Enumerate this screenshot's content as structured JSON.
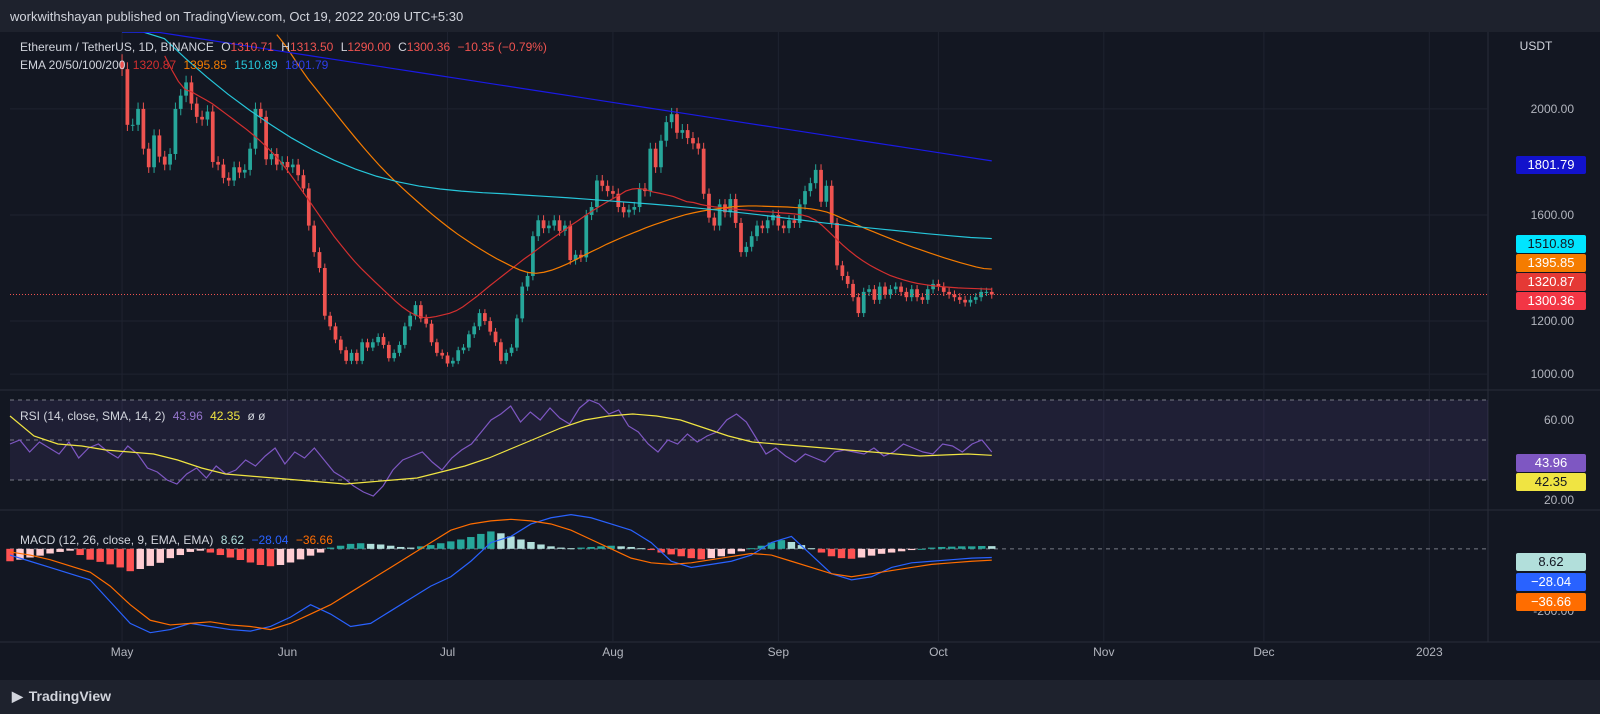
{
  "header": {
    "publisher": "workwithshayan published on TradingView.com, Oct 19, 2022 20:09 UTC+5:30"
  },
  "footer": {
    "brand": "TradingView"
  },
  "main_legend": {
    "symbol": "Ethereum / TetherUS, 1D, BINANCE",
    "o_label": "O",
    "o": "1310.71",
    "h_label": "H",
    "h": "1313.50",
    "l_label": "L",
    "l": "1290.00",
    "c_label": "C",
    "c": "1300.36",
    "change": "−10.35 (−0.79%)",
    "ema_label": "EMA 20/50/100/200",
    "ema20": "1320.87",
    "ema50": "1395.85",
    "ema100": "1510.89",
    "ema200": "1801.79"
  },
  "rsi_legend": {
    "label": "RSI (14, close, SMA, 14, 2)",
    "rsi": "43.96",
    "sma": "42.35",
    "extra": "ø ø"
  },
  "macd_legend": {
    "label": "MACD (12, 26, close, 9, EMA, EMA)",
    "hist": "8.62",
    "macd": "−28.04",
    "signal": "−36.66"
  },
  "price_labels": {
    "ema200": "1801.79",
    "ema100": "1510.89",
    "ema50": "1395.85",
    "ema20": "1320.87",
    "close": "1300.36",
    "rsi": "43.96",
    "rsi_sma": "42.35",
    "hist": "8.62",
    "macd": "−28.04",
    "signal": "−36.66"
  },
  "colors": {
    "background": "#131722",
    "up": "#26a69a",
    "down": "#ef5350",
    "ema20": "#d32f2f",
    "ema50": "#f57c00",
    "ema100": "#26c6da",
    "ema200": "#1a1ae6",
    "rsi": "#7e57c2",
    "rsi_sma": "#f0e442",
    "macd": "#2962ff",
    "signal": "#ff6d00"
  },
  "chart_data": [
    {
      "type": "candlestick",
      "title": "Ethereum / TetherUS, 1D, BINANCE",
      "unit": "USDT",
      "y_ticks": [
        "1000.00",
        "1200.00",
        "1600.00",
        "2000.00"
      ],
      "ylim": [
        940,
        2290
      ],
      "x_ticks": [
        "May",
        "Jun",
        "Jul",
        "Aug",
        "Sep",
        "Oct",
        "Nov",
        "Dec",
        "2023"
      ],
      "xlim": [
        "2022-04-10",
        "2023-01-12"
      ],
      "close": [
        2150,
        1940,
        1940,
        2000,
        1850,
        1780,
        1900,
        1820,
        1790,
        1830,
        2000,
        2050,
        2100,
        2020,
        1970,
        1960,
        1990,
        1800,
        1790,
        1740,
        1730,
        1780,
        1760,
        1770,
        1850,
        2000,
        1970,
        1810,
        1830,
        1790,
        1800,
        1780,
        1790,
        1750,
        1700,
        1560,
        1460,
        1400,
        1220,
        1180,
        1130,
        1090,
        1050,
        1080,
        1050,
        1120,
        1100,
        1120,
        1140,
        1110,
        1060,
        1080,
        1110,
        1180,
        1220,
        1260,
        1210,
        1190,
        1120,
        1080,
        1070,
        1040,
        1050,
        1090,
        1100,
        1150,
        1180,
        1230,
        1200,
        1160,
        1120,
        1050,
        1080,
        1100,
        1210,
        1330,
        1370,
        1520,
        1580,
        1550,
        1560,
        1580,
        1540,
        1560,
        1430,
        1450,
        1440,
        1600,
        1630,
        1730,
        1710,
        1690,
        1680,
        1630,
        1610,
        1620,
        1630,
        1700,
        1690,
        1850,
        1780,
        1880,
        1950,
        1980,
        1910,
        1920,
        1890,
        1870,
        1850,
        1680,
        1590,
        1560,
        1640,
        1610,
        1660,
        1570,
        1460,
        1480,
        1520,
        1560,
        1550,
        1580,
        1600,
        1560,
        1550,
        1580,
        1570,
        1640,
        1690,
        1720,
        1770,
        1650,
        1710,
        1570,
        1410,
        1370,
        1340,
        1290,
        1230,
        1310,
        1320,
        1280,
        1330,
        1300,
        1320,
        1330,
        1310,
        1290,
        1320,
        1290,
        1280,
        1320,
        1340,
        1330,
        1310,
        1300,
        1290,
        1280,
        1270,
        1280,
        1290,
        1310,
        1310,
        1300
      ],
      "ema20": [
        2200,
        2149,
        2104,
        2073,
        2064,
        2049,
        2035,
        2020,
        2001,
        1982,
        1963,
        1943,
        1924,
        1903,
        1881,
        1857,
        1832,
        1803,
        1771,
        1736,
        1700,
        1665,
        1628,
        1591,
        1555,
        1519,
        1487,
        1455,
        1425,
        1398,
        1373,
        1348,
        1324,
        1300,
        1276,
        1254,
        1236,
        1222,
        1214,
        1213,
        1217,
        1223,
        1229,
        1239,
        1254,
        1273,
        1292,
        1313,
        1334,
        1354,
        1374,
        1394,
        1414,
        1434,
        1452,
        1471,
        1490,
        1508,
        1526,
        1544,
        1562,
        1579,
        1597,
        1614,
        1630,
        1645,
        1660,
        1674,
        1690,
        1698,
        1700,
        1695,
        1687,
        1682,
        1676,
        1670,
        1660,
        1650,
        1647,
        1640,
        1635,
        1631,
        1628,
        1625,
        1622,
        1620,
        1618,
        1615,
        1613,
        1612,
        1610,
        1608,
        1606,
        1604,
        1600,
        1593,
        1580,
        1560,
        1536,
        1511,
        1487,
        1465,
        1445,
        1427,
        1411,
        1397,
        1384,
        1372,
        1363,
        1355,
        1348,
        1342,
        1338,
        1334,
        1331,
        1329,
        1327,
        1325,
        1324,
        1323,
        1322,
        1321,
        1320
      ],
      "ema50": [
        2280,
        2243,
        2199,
        2154,
        2112,
        2075,
        2038,
        2001,
        1964,
        1927,
        1891,
        1856,
        1822,
        1789,
        1758,
        1729,
        1701,
        1674,
        1648,
        1622,
        1597,
        1573,
        1550,
        1528,
        1508,
        1488,
        1470,
        1452,
        1435,
        1420,
        1405,
        1392,
        1383,
        1380,
        1384,
        1392,
        1403,
        1416,
        1431,
        1446,
        1461,
        1475,
        1490,
        1503,
        1516,
        1528,
        1540,
        1552,
        1563,
        1573,
        1583,
        1592,
        1601,
        1608,
        1614,
        1619,
        1623,
        1627,
        1631,
        1633,
        1634,
        1634,
        1633,
        1632,
        1631,
        1630,
        1628,
        1626,
        1623,
        1618,
        1611,
        1600,
        1587,
        1574,
        1561,
        1548,
        1536,
        1524,
        1512,
        1500,
        1489,
        1478,
        1468,
        1458,
        1448,
        1438,
        1429,
        1420,
        1412,
        1404,
        1398,
        1396
      ],
      "ema100": [
        2400,
        2340,
        2265,
        2190,
        2120,
        2055,
        1996,
        1941,
        1890,
        1845,
        1806,
        1773,
        1746,
        1725,
        1709,
        1698,
        1690,
        1684,
        1680,
        1675,
        1670,
        1665,
        1659,
        1653,
        1647,
        1641,
        1634,
        1627,
        1619,
        1610,
        1601,
        1591,
        1581,
        1571,
        1562,
        1553,
        1545,
        1537,
        1529,
        1522,
        1515,
        1511
      ],
      "ema200": [
        2310,
        2288,
        2266,
        2244,
        2222,
        2200,
        2178,
        2156,
        2134,
        2112,
        2090,
        2068,
        2046,
        2024,
        2002,
        1980,
        1958,
        1936,
        1914,
        1892,
        1870,
        1848,
        1826,
        1804
      ]
    },
    {
      "type": "line",
      "title": "RSI (14, close, SMA, 14, 2)",
      "y_ticks": [
        "20.00",
        "60.00"
      ],
      "ylim": [
        15,
        75
      ],
      "bands": [
        30,
        50,
        70
      ],
      "series": [
        {
          "name": "RSI",
          "values": [
            48,
            50,
            44,
            49,
            46,
            43,
            49,
            41,
            46,
            48,
            44,
            41,
            47,
            43,
            36,
            34,
            30,
            28,
            33,
            36,
            31,
            37,
            33,
            35,
            40,
            37,
            42,
            46,
            38,
            44,
            41,
            46,
            40,
            34,
            31,
            27,
            24,
            22,
            27,
            35,
            40,
            42,
            44,
            39,
            35,
            41,
            45,
            48,
            54,
            60,
            63,
            67,
            59,
            64,
            60,
            66,
            61,
            58,
            66,
            70,
            68,
            63,
            65,
            57,
            54,
            48,
            44,
            50,
            48,
            53,
            49,
            52,
            54,
            60,
            63,
            59,
            51,
            43,
            46,
            42,
            39,
            43,
            41,
            39,
            44,
            45,
            44,
            43,
            46,
            42,
            44,
            48,
            46,
            44,
            43,
            48,
            47,
            44,
            48,
            50,
            44
          ]
        },
        {
          "name": "SMA",
          "values": [
            62,
            52,
            48,
            47,
            45,
            44,
            43,
            40,
            36,
            33,
            32,
            31,
            30,
            29,
            28,
            29,
            30,
            31,
            34,
            37,
            41,
            46,
            51,
            56,
            60,
            62,
            63,
            62,
            60,
            56,
            52,
            49,
            48,
            47,
            46,
            45,
            44,
            43,
            42,
            42.5,
            43,
            42.35
          ]
        }
      ]
    },
    {
      "type": "bar",
      "title": "MACD (12, 26, close, 9, EMA, EMA)",
      "y_ticks": [
        "-200.00"
      ],
      "ylim": [
        -300,
        125
      ],
      "series": [
        {
          "name": "Histogram",
          "values": [
            -40,
            -35,
            -28,
            -22,
            -15,
            -10,
            -6,
            -20,
            -35,
            -42,
            -50,
            -60,
            -72,
            -65,
            -55,
            -45,
            -30,
            -20,
            -10,
            -6,
            -12,
            -20,
            -28,
            -36,
            -44,
            -52,
            -56,
            -52,
            -44,
            -34,
            -22,
            -12,
            4,
            10,
            16,
            18,
            16,
            14,
            10,
            6,
            4,
            8,
            12,
            18,
            24,
            30,
            38,
            48,
            56,
            50,
            40,
            30,
            22,
            14,
            8,
            4,
            2,
            4,
            6,
            8,
            10,
            8,
            6,
            2,
            -4,
            -12,
            -18,
            -24,
            -30,
            -34,
            -30,
            -24,
            -16,
            -8,
            2,
            10,
            20,
            28,
            22,
            12,
            2,
            -12,
            -24,
            -30,
            -32,
            -28,
            -22,
            -16,
            -12,
            -8,
            -4,
            0,
            4,
            6,
            7,
            8,
            8,
            9,
            8.62
          ]
        },
        {
          "name": "MACD",
          "values": [
            -20,
            -40,
            -60,
            -80,
            -100,
            -170,
            -240,
            -270,
            -260,
            -240,
            -250,
            -260,
            -265,
            -250,
            -220,
            -180,
            -210,
            -250,
            -240,
            -200,
            -160,
            -120,
            -90,
            -40,
            20,
            40,
            80,
            100,
            110,
            100,
            80,
            60,
            20,
            -40,
            -60,
            -50,
            -40,
            -20,
            20,
            40,
            -20,
            -80,
            -100,
            -90,
            -60,
            -45,
            -40,
            -35,
            -30,
            -28.04
          ]
        },
        {
          "name": "Signal",
          "values": [
            -10,
            -20,
            -35,
            -55,
            -75,
            -120,
            -180,
            -230,
            -245,
            -240,
            -235,
            -245,
            -250,
            -260,
            -240,
            -210,
            -180,
            -140,
            -100,
            -60,
            -20,
            20,
            60,
            80,
            90,
            95,
            90,
            80,
            60,
            30,
            0,
            -30,
            -45,
            -50,
            -45,
            -35,
            -25,
            -15,
            -20,
            -40,
            -60,
            -80,
            -90,
            -80,
            -70,
            -60,
            -50,
            -45,
            -40,
            -36.66
          ]
        }
      ]
    }
  ]
}
